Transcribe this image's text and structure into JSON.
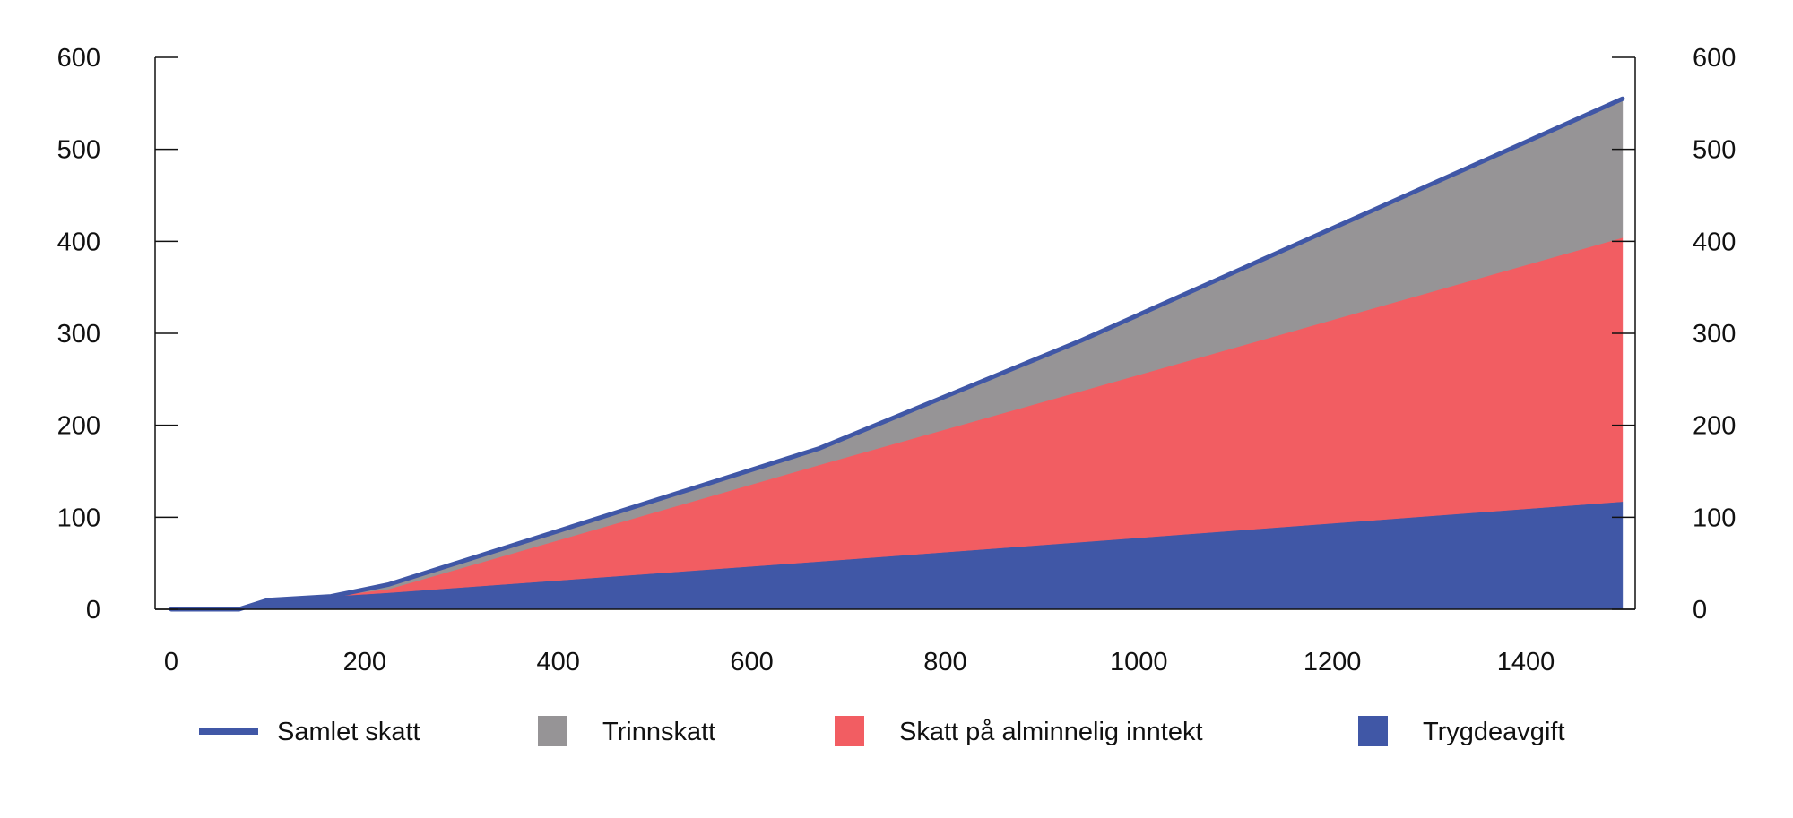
{
  "chart_data": {
    "type": "area",
    "stacked": true,
    "title": "",
    "xlabel": "",
    "ylabel": "",
    "xlim": [
      0,
      1500
    ],
    "ylim": [
      0,
      600
    ],
    "x_ticks": [
      0,
      200,
      400,
      600,
      800,
      1000,
      1200,
      1400
    ],
    "y_ticks": [
      0,
      100,
      200,
      300,
      400,
      500,
      600
    ],
    "grid": false,
    "secondary_y_axis": true,
    "legend_placement": "bottom",
    "x": [
      0,
      70,
      100,
      165,
      225,
      670,
      940,
      1500
    ],
    "series": [
      {
        "name": "Trygdeavgift",
        "kind": "area",
        "color": "#4057a6",
        "values": [
          0,
          0,
          10,
          14,
          18,
          52,
          73,
          117
        ]
      },
      {
        "name": "Skatt på alminnelig inntekt",
        "kind": "area",
        "color": "#f25d62",
        "values": [
          0,
          0,
          0,
          0,
          4,
          105,
          164,
          287
        ]
      },
      {
        "name": "Trinnskatt",
        "kind": "area",
        "color": "#969496",
        "values": [
          0,
          0,
          0,
          0,
          5,
          18,
          55,
          151
        ]
      },
      {
        "name": "Samlet skatt",
        "kind": "line",
        "color": "#4057a6",
        "values": [
          0,
          0,
          10,
          14,
          27,
          175,
          292,
          555
        ]
      }
    ],
    "legend_order": [
      "Samlet skatt",
      "Trinnskatt",
      "Skatt på alminnelig inntekt",
      "Trygdeavgift"
    ]
  }
}
